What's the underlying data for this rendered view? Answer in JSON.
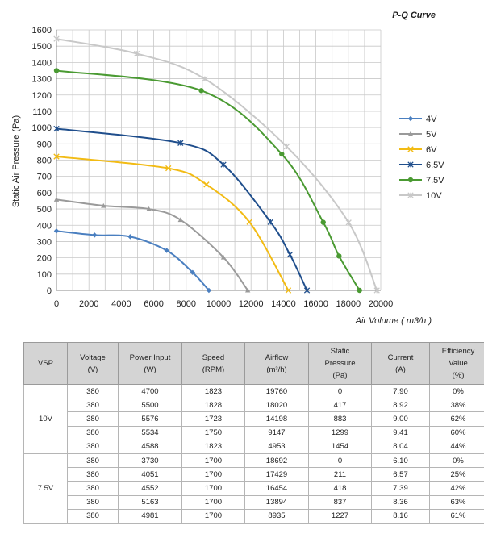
{
  "chart_data": {
    "type": "line",
    "title": "P-Q Curve",
    "xlabel": "Air Volume ( m3/h )",
    "ylabel": "Static Air Pressure  (Pa)",
    "xlim": [
      0,
      20000
    ],
    "ylim": [
      0,
      1600
    ],
    "xticks": [
      0,
      2000,
      4000,
      6000,
      8000,
      10000,
      12000,
      14000,
      16000,
      18000,
      20000
    ],
    "xtick_labels": [
      "0",
      "2000",
      "4000",
      "6000",
      "8000",
      "10000",
      "12000",
      "14000",
      "16000",
      "18000",
      "20000"
    ],
    "yticks": [
      0,
      100,
      200,
      300,
      400,
      500,
      600,
      700,
      800,
      900,
      1000,
      1100,
      1200,
      1300,
      1400,
      1500,
      1600
    ],
    "ytick_labels": [
      "0",
      "100",
      "200",
      "300",
      "400",
      "500",
      "600",
      "700",
      "800",
      "900",
      "1000",
      "1100",
      "1200",
      "1300",
      "1400",
      "1500",
      "1600"
    ],
    "grid": true,
    "legend": "right",
    "series": [
      {
        "name": "4V",
        "color": "#4a7fc0",
        "marker": "diamond",
        "x": [
          0,
          2350,
          4550,
          6800,
          8400,
          9400
        ],
        "y": [
          365,
          340,
          330,
          245,
          110,
          0
        ]
      },
      {
        "name": "5V",
        "color": "#9a9a9a",
        "marker": "triangle",
        "x": [
          0,
          2900,
          5700,
          7650,
          10300,
          11800
        ],
        "y": [
          558,
          520,
          500,
          433,
          203,
          0
        ]
      },
      {
        "name": "6V",
        "color": "#f2bb14",
        "marker": "x",
        "x": [
          0,
          6900,
          9250,
          11900,
          14300
        ],
        "y": [
          822,
          750,
          650,
          420,
          0
        ]
      },
      {
        "name": "6.5V",
        "color": "#1f4e8c",
        "marker": "star",
        "x": [
          0,
          7650,
          10300,
          13200,
          14400,
          15450
        ],
        "y": [
          993,
          905,
          772,
          420,
          220,
          0
        ]
      },
      {
        "name": "7.5V",
        "color": "#4a9a32",
        "marker": "circle",
        "x": [
          0,
          8935,
          13894,
          16454,
          17429,
          18692
        ],
        "y": [
          1350,
          1227,
          837,
          418,
          211,
          0
        ]
      },
      {
        "name": "10V",
        "color": "#c8c8c8",
        "marker": "star",
        "x": [
          0,
          4953,
          9147,
          14198,
          18020,
          19760
        ],
        "y": [
          1545,
          1454,
          1299,
          883,
          417,
          0
        ]
      }
    ]
  },
  "table": {
    "headers": [
      "VSP",
      "Voltage\n(V)",
      "Power Input\n(W)",
      "Speed\n(RPM)",
      "Airflow\n(m³/h)",
      "Static\nPressure\n(Pa)",
      "Current\n(A)",
      "Efficiency\nValue\n(%)"
    ],
    "groups": [
      {
        "vsp": "10V",
        "rows": [
          [
            "380",
            "4700",
            "1823",
            "19760",
            "0",
            "7.90",
            "0%"
          ],
          [
            "380",
            "5500",
            "1828",
            "18020",
            "417",
            "8.92",
            "38%"
          ],
          [
            "380",
            "5576",
            "1723",
            "14198",
            "883",
            "9.00",
            "62%"
          ],
          [
            "380",
            "5534",
            "1750",
            "9147",
            "1299",
            "9.41",
            "60%"
          ],
          [
            "380",
            "4588",
            "1823",
            "4953",
            "1454",
            "8.04",
            "44%"
          ]
        ]
      },
      {
        "vsp": "7.5V",
        "rows": [
          [
            "380",
            "3730",
            "1700",
            "18692",
            "0",
            "6.10",
            "0%"
          ],
          [
            "380",
            "4051",
            "1700",
            "17429",
            "211",
            "6.57",
            "25%"
          ],
          [
            "380",
            "4552",
            "1700",
            "16454",
            "418",
            "7.39",
            "42%"
          ],
          [
            "380",
            "5163",
            "1700",
            "13894",
            "837",
            "8.36",
            "63%"
          ],
          [
            "380",
            "4981",
            "1700",
            "8935",
            "1227",
            "8.16",
            "61%"
          ]
        ]
      }
    ]
  }
}
